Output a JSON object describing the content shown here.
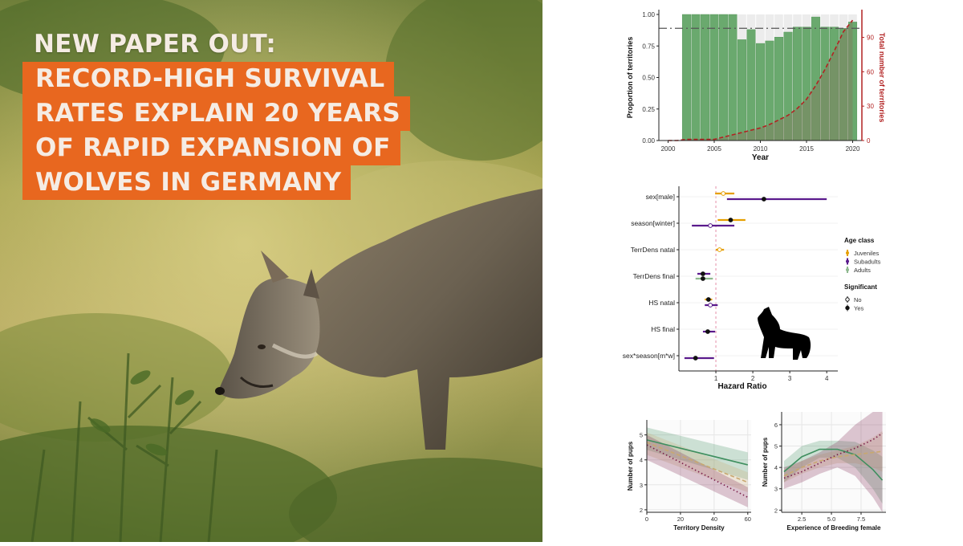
{
  "headline": {
    "line1": "NEW PAPER OUT:",
    "line2": "RECORD-HIGH SURVIVAL",
    "line3": "RATES EXPLAIN 20 YEARS",
    "line4": "OF RAPID EXPANSION OF",
    "line5": "WOLVES IN GERMANY",
    "accent_color": "#e8671f"
  },
  "chart_data": [
    {
      "type": "bar",
      "xlabel": "Year",
      "ylabel": "Proportion of territories",
      "y2label": "Total number of territories",
      "x_ticks": [
        "2000",
        "2005",
        "2010",
        "2015",
        "2020"
      ],
      "y_ticks": [
        "0.00",
        "0.25",
        "0.50",
        "0.75",
        "1.00"
      ],
      "y2_ticks": [
        "0",
        "30",
        "60",
        "90"
      ],
      "xlim": [
        1999,
        2021
      ],
      "ylim": [
        0,
        1
      ],
      "y2lim": [
        0,
        110
      ],
      "categories": [
        2002,
        2003,
        2004,
        2005,
        2006,
        2007,
        2008,
        2009,
        2010,
        2011,
        2012,
        2013,
        2014,
        2015,
        2016,
        2017,
        2018,
        2019,
        2020
      ],
      "values": [
        1.0,
        1.0,
        1.0,
        1.0,
        1.0,
        1.0,
        0.8,
        0.88,
        0.77,
        0.79,
        0.82,
        0.86,
        0.9,
        0.9,
        0.98,
        0.9,
        0.9,
        0.89,
        0.94
      ],
      "reference_line": 0.89,
      "line_series": {
        "x": [
          2000,
          2001,
          2002,
          2003,
          2004,
          2005,
          2006,
          2007,
          2008,
          2009,
          2010,
          2011,
          2012,
          2013,
          2014,
          2015,
          2016,
          2017,
          2018,
          2019,
          2020
        ],
        "y": [
          0,
          0,
          1,
          1,
          1,
          1,
          3,
          5,
          7,
          9,
          11,
          14,
          18,
          22,
          28,
          36,
          48,
          62,
          78,
          95,
          105
        ]
      },
      "colors": {
        "bar": "#6aa96e",
        "bar_bg": "#ececec",
        "line": "#b22222"
      }
    },
    {
      "type": "scatter",
      "xlabel": "Hazard Ratio",
      "x_ticks": [
        "1",
        "2",
        "3",
        "4"
      ],
      "xlim": [
        0,
        4.3
      ],
      "reference_line": 1,
      "categories": [
        "sex[male]",
        "season[winter]",
        "TerrDens natal",
        "TerrDens final",
        "HS natal",
        "HS final",
        "sex*season[m*w]"
      ],
      "legend_title_age": "Age class",
      "legend_age": [
        "Juveniles",
        "Subadults",
        "Adults"
      ],
      "legend_title_sig": "Significant",
      "legend_sig": [
        "No",
        "Yes"
      ],
      "points": [
        {
          "term": "sex[male]",
          "age": "Juveniles",
          "est": 1.2,
          "lo": 0.98,
          "hi": 1.5,
          "sig": "No"
        },
        {
          "term": "sex[male]",
          "age": "Subadults",
          "est": 2.3,
          "lo": 1.3,
          "hi": 4.0,
          "sig": "Yes"
        },
        {
          "term": "season[winter]",
          "age": "Juveniles",
          "est": 1.4,
          "lo": 1.05,
          "hi": 1.8,
          "sig": "Yes"
        },
        {
          "term": "season[winter]",
          "age": "Subadults",
          "est": 0.85,
          "lo": 0.35,
          "hi": 1.5,
          "sig": "No"
        },
        {
          "term": "TerrDens natal",
          "age": "Juveniles",
          "est": 1.1,
          "lo": 1.0,
          "hi": 1.22,
          "sig": "No"
        },
        {
          "term": "TerrDens final",
          "age": "Subadults",
          "est": 0.65,
          "lo": 0.5,
          "hi": 0.85,
          "sig": "Yes"
        },
        {
          "term": "TerrDens final",
          "age": "Adults",
          "est": 0.65,
          "lo": 0.45,
          "hi": 0.92,
          "sig": "Yes"
        },
        {
          "term": "HS natal",
          "age": "Juveniles",
          "est": 0.8,
          "lo": 0.7,
          "hi": 0.9,
          "sig": "Yes"
        },
        {
          "term": "HS natal",
          "age": "Subadults",
          "est": 0.85,
          "lo": 0.7,
          "hi": 1.05,
          "sig": "No"
        },
        {
          "term": "HS final",
          "age": "Subadults",
          "est": 0.78,
          "lo": 0.65,
          "hi": 0.98,
          "sig": "Yes"
        },
        {
          "term": "sex*season[m*w]",
          "age": "Subadults",
          "est": 0.45,
          "lo": 0.15,
          "hi": 0.95,
          "sig": "Yes"
        }
      ],
      "colors": {
        "Juveniles": "#e69f00",
        "Subadults": "#5a1a8c",
        "Adults": "#8fb98f"
      }
    },
    {
      "type": "line",
      "xlabel": "Territory Density",
      "ylabel": "Number of pups",
      "x_ticks": [
        "0",
        "20",
        "40",
        "60"
      ],
      "y_ticks": [
        "2",
        "3",
        "4",
        "5"
      ],
      "xlim": [
        0,
        62
      ],
      "ylim": [
        1.9,
        5.6
      ],
      "x": [
        0,
        60
      ],
      "series": [
        {
          "style": "solid",
          "values": [
            4.8,
            3.8
          ],
          "band_lo": [
            4.4,
            3.2
          ],
          "band_hi": [
            5.3,
            4.3
          ],
          "color": "#3f8f5f"
        },
        {
          "style": "dashed",
          "values": [
            4.7,
            3.1
          ],
          "band_lo": [
            4.2,
            2.7
          ],
          "band_hi": [
            5.1,
            3.5
          ],
          "color": "#c8a870"
        },
        {
          "style": "dotted",
          "values": [
            4.6,
            2.5
          ],
          "band_lo": [
            4.0,
            2.1
          ],
          "band_hi": [
            5.0,
            2.9
          ],
          "color": "#7a1f4a"
        }
      ]
    },
    {
      "type": "line",
      "xlabel": "Experience of Breeding female",
      "ylabel": "Number of pups",
      "x_ticks": [
        "2.5",
        "5.0",
        "7.5"
      ],
      "y_ticks": [
        "2",
        "3",
        "4",
        "5",
        "6"
      ],
      "xlim": [
        0.8,
        9.6
      ],
      "ylim": [
        1.9,
        6.6
      ],
      "x": [
        1,
        2.5,
        4,
        5.5,
        7,
        8.5,
        9.3
      ],
      "series": [
        {
          "style": "solid",
          "values": [
            3.8,
            4.5,
            4.85,
            4.85,
            4.6,
            3.9,
            3.4
          ],
          "band_lo": [
            3.3,
            4.0,
            4.45,
            4.45,
            4.0,
            3.0,
            2.3
          ],
          "band_hi": [
            4.3,
            5.0,
            5.25,
            5.25,
            5.2,
            4.8,
            4.5
          ],
          "color": "#3f8f5f"
        },
        {
          "style": "dashed",
          "values": [
            3.6,
            4.0,
            4.3,
            4.5,
            4.6,
            4.7,
            4.75
          ],
          "band_lo": [
            3.3,
            3.7,
            4.0,
            4.2,
            4.2,
            4.0,
            3.8
          ],
          "band_hi": [
            3.9,
            4.3,
            4.6,
            4.8,
            5.0,
            5.4,
            5.7
          ],
          "color": "#c8a870"
        },
        {
          "style": "dotted",
          "values": [
            3.5,
            3.8,
            4.2,
            4.6,
            4.9,
            5.3,
            5.6
          ],
          "band_lo": [
            3.0,
            3.3,
            3.7,
            4.0,
            3.6,
            2.6,
            1.9
          ],
          "band_hi": [
            4.0,
            4.3,
            4.7,
            5.2,
            6.0,
            6.6,
            6.6
          ],
          "color": "#7a1f4a"
        }
      ]
    }
  ]
}
